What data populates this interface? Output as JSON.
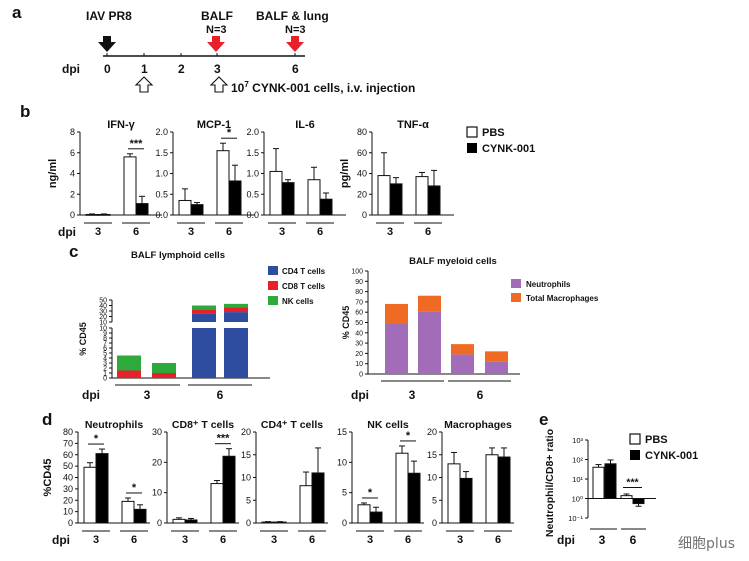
{
  "panels": {
    "a": "a",
    "b": "b",
    "c": "c",
    "d": "d",
    "e": "e"
  },
  "timeline": {
    "infection_label": "IAV PR8",
    "balf_label": "BALF",
    "balf_n": "N=3",
    "balf_lung_label": "BALF & lung",
    "balf_lung_n": "N=3",
    "axis_label": "dpi",
    "ticks": [
      "0",
      "1",
      "2",
      "3",
      "6"
    ],
    "injection_prefix": "10",
    "injection_exp": "7",
    "injection_text": " CYNK-001 cells, i.v. injection"
  },
  "legend": {
    "pbs": "PBS",
    "cynk": "CYNK-001"
  },
  "colors": {
    "cd4": "#2e4da0",
    "cd8": "#e8202a",
    "nk": "#2eaa3c",
    "neut": "#a36cb8",
    "mac": "#ef6a23",
    "pbs": "#ffffff",
    "cynk": "#000000"
  },
  "chart_data": [
    {
      "id": "b-ifng",
      "type": "bar",
      "title": "IFN-γ",
      "ylabel": "ng/ml",
      "xlabel": "dpi",
      "ylim": [
        0,
        8
      ],
      "yticks": [
        "0",
        "2",
        "4",
        "6",
        "8"
      ],
      "categories": [
        "3",
        "6"
      ],
      "series": [
        {
          "name": "PBS",
          "values": [
            0.05,
            5.6
          ],
          "errors": [
            0.05,
            0.3
          ]
        },
        {
          "name": "CYNK-001",
          "values": [
            0.05,
            1.1
          ],
          "errors": [
            0.05,
            0.7
          ]
        }
      ],
      "sig": [
        {
          "group": 1,
          "text": "***"
        }
      ]
    },
    {
      "id": "b-mcp1",
      "type": "bar",
      "title": "MCP-1",
      "ylabel": "",
      "xlabel": "",
      "ylim": [
        0,
        2.0
      ],
      "yticks": [
        "0.0",
        "0.5",
        "1.0",
        "1.5",
        "2.0"
      ],
      "categories": [
        "3",
        "6"
      ],
      "series": [
        {
          "name": "PBS",
          "values": [
            0.35,
            1.55
          ],
          "errors": [
            0.28,
            0.18
          ]
        },
        {
          "name": "CYNK-001",
          "values": [
            0.25,
            0.82
          ],
          "errors": [
            0.05,
            0.38
          ]
        }
      ],
      "sig": [
        {
          "group": 1,
          "text": "*"
        }
      ]
    },
    {
      "id": "b-il6",
      "type": "bar",
      "title": "IL-6",
      "ylabel": "",
      "xlabel": "",
      "ylim": [
        0,
        2.0
      ],
      "yticks": [
        "0.0",
        "0.5",
        "1.0",
        "1.5",
        "2.0"
      ],
      "categories": [
        "3",
        "6"
      ],
      "series": [
        {
          "name": "PBS",
          "values": [
            1.05,
            0.85
          ],
          "errors": [
            0.55,
            0.3
          ]
        },
        {
          "name": "CYNK-001",
          "values": [
            0.78,
            0.38
          ],
          "errors": [
            0.07,
            0.15
          ]
        }
      ],
      "sig": []
    },
    {
      "id": "b-tnfa",
      "type": "bar",
      "title": "TNF-α",
      "ylabel": "pg/ml",
      "xlabel": "",
      "ylim": [
        0,
        80
      ],
      "yticks": [
        "0",
        "20",
        "40",
        "60",
        "80"
      ],
      "categories": [
        "3",
        "6"
      ],
      "series": [
        {
          "name": "PBS",
          "values": [
            38,
            37
          ],
          "errors": [
            22,
            4
          ]
        },
        {
          "name": "CYNK-001",
          "values": [
            30,
            28
          ],
          "errors": [
            6,
            15
          ]
        }
      ],
      "sig": []
    },
    {
      "id": "c-lymphoid",
      "type": "bar",
      "stacked": true,
      "broken_axis": true,
      "title": "BALF lymphoid cells",
      "ylabel": "% CD45",
      "xlabel": "dpi",
      "categories": [
        "3",
        "6"
      ],
      "yticks_low": [
        "0",
        "1",
        "2",
        "3",
        "4",
        "5",
        "6",
        "7",
        "8",
        "9",
        "10"
      ],
      "yticks_high": [
        "10",
        "20",
        "30",
        "40",
        "50"
      ],
      "bars": [
        {
          "group": 0,
          "segments": [
            {
              "name": "CD4 T cells",
              "value": 0.0
            },
            {
              "name": "CD8 T cells",
              "value": 1.5
            },
            {
              "name": "NK cells",
              "value": 3.0
            }
          ]
        },
        {
          "group": 0,
          "segments": [
            {
              "name": "CD4 T cells",
              "value": 0.0
            },
            {
              "name": "CD8 T cells",
              "value": 1.0
            },
            {
              "name": "NK cells",
              "value": 2.0
            }
          ]
        },
        {
          "group": 1,
          "segments": [
            {
              "name": "CD4 T cells",
              "value": 26
            },
            {
              "name": "CD8 T cells",
              "value": 7
            },
            {
              "name": "NK cells",
              "value": 7
            }
          ]
        },
        {
          "group": 1,
          "segments": [
            {
              "name": "CD4 T cells",
              "value": 28
            },
            {
              "name": "CD8 T cells",
              "value": 9
            },
            {
              "name": "NK cells",
              "value": 6
            }
          ]
        }
      ],
      "legend": [
        "CD4 T cells",
        "CD8 T cells",
        "NK cells"
      ]
    },
    {
      "id": "c-myeloid",
      "type": "bar",
      "stacked": true,
      "title": "BALF myeloid cells",
      "ylabel": "% CD45",
      "xlabel": "dpi",
      "categories": [
        "3",
        "6"
      ],
      "ylim": [
        0,
        100
      ],
      "yticks": [
        "0",
        "10",
        "20",
        "30",
        "40",
        "50",
        "60",
        "70",
        "80",
        "90",
        "100"
      ],
      "bars": [
        {
          "group": 0,
          "segments": [
            {
              "name": "Neutrophils",
              "value": 49
            },
            {
              "name": "Total Macrophages",
              "value": 19
            }
          ]
        },
        {
          "group": 0,
          "segments": [
            {
              "name": "Neutrophils",
              "value": 61
            },
            {
              "name": "Total Macrophages",
              "value": 15
            }
          ]
        },
        {
          "group": 1,
          "segments": [
            {
              "name": "Neutrophils",
              "value": 19
            },
            {
              "name": "Total Macrophages",
              "value": 10
            }
          ]
        },
        {
          "group": 1,
          "segments": [
            {
              "name": "Neutrophils",
              "value": 12
            },
            {
              "name": "Total Macrophages",
              "value": 10
            }
          ]
        }
      ],
      "legend": [
        "Neutrophils",
        "Total Macrophages"
      ]
    },
    {
      "id": "d-neut",
      "type": "bar",
      "title": "Neutrophils",
      "ylabel": "%CD45",
      "xlabel": "dpi",
      "ylim": [
        0,
        80
      ],
      "yticks": [
        "0",
        "10",
        "20",
        "30",
        "40",
        "50",
        "60",
        "70",
        "80"
      ],
      "categories": [
        "3",
        "6"
      ],
      "series": [
        {
          "name": "PBS",
          "values": [
            49,
            19
          ],
          "errors": [
            4,
            3
          ]
        },
        {
          "name": "CYNK-001",
          "values": [
            61,
            12
          ],
          "errors": [
            4,
            4
          ]
        }
      ],
      "sig": [
        {
          "group": 0,
          "text": "*"
        },
        {
          "group": 1,
          "text": "*"
        }
      ]
    },
    {
      "id": "d-cd8",
      "type": "bar",
      "title": "CD8⁺ T cells",
      "ylabel": "",
      "xlabel": "",
      "ylim": [
        0,
        30
      ],
      "yticks": [
        "0",
        "10",
        "20",
        "30"
      ],
      "categories": [
        "3",
        "6"
      ],
      "series": [
        {
          "name": "PBS",
          "values": [
            1.2,
            13
          ],
          "errors": [
            0.5,
            1
          ]
        },
        {
          "name": "CYNK-001",
          "values": [
            1.0,
            22
          ],
          "errors": [
            0.5,
            2.5
          ]
        }
      ],
      "sig": [
        {
          "group": 1,
          "text": "***"
        }
      ]
    },
    {
      "id": "d-cd4",
      "type": "bar",
      "title": "CD4⁺ T cells",
      "ylabel": "",
      "xlabel": "",
      "ylim": [
        0,
        20
      ],
      "yticks": [
        "0",
        "5",
        "10",
        "15",
        "20"
      ],
      "categories": [
        "3",
        "6"
      ],
      "series": [
        {
          "name": "PBS",
          "values": [
            0.2,
            8.2
          ],
          "errors": [
            0.1,
            3.0
          ]
        },
        {
          "name": "CYNK-001",
          "values": [
            0.2,
            11
          ],
          "errors": [
            0.1,
            5.5
          ]
        }
      ],
      "sig": []
    },
    {
      "id": "d-nk",
      "type": "bar",
      "title": "NK cells",
      "ylabel": "",
      "xlabel": "",
      "ylim": [
        0,
        15
      ],
      "yticks": [
        "0",
        "5",
        "10",
        "15"
      ],
      "categories": [
        "3",
        "6"
      ],
      "series": [
        {
          "name": "PBS",
          "values": [
            3.0,
            11.5
          ],
          "errors": [
            0.3,
            1.2
          ]
        },
        {
          "name": "CYNK-001",
          "values": [
            1.8,
            8.2
          ],
          "errors": [
            0.8,
            2.0
          ]
        }
      ],
      "sig": [
        {
          "group": 0,
          "text": "*"
        },
        {
          "group": 1,
          "text": "*"
        }
      ]
    },
    {
      "id": "d-mac",
      "type": "bar",
      "title": "Macrophages",
      "ylabel": "",
      "xlabel": "",
      "ylim": [
        0,
        20
      ],
      "yticks": [
        "0",
        "5",
        "10",
        "15",
        "20"
      ],
      "categories": [
        "3",
        "6"
      ],
      "series": [
        {
          "name": "PBS",
          "values": [
            13,
            15
          ],
          "errors": [
            2.5,
            1.5
          ]
        },
        {
          "name": "CYNK-001",
          "values": [
            9.8,
            14.5
          ],
          "errors": [
            1.5,
            2.0
          ]
        }
      ],
      "sig": []
    },
    {
      "id": "e-ratio",
      "type": "bar",
      "title": "",
      "ylabel": "Neutrophil/CD8+ ratio",
      "xlabel": "dpi",
      "ylog": true,
      "yticks": [
        "10³",
        "10²",
        "10¹",
        "10⁰",
        "10⁻¹"
      ],
      "categories": [
        "3",
        "6"
      ],
      "series": [
        {
          "name": "PBS",
          "values": [
            40,
            1.4
          ],
          "errors": [
            15,
            0.3
          ]
        },
        {
          "name": "CYNK-001",
          "values": [
            60,
            0.55
          ],
          "errors": [
            35,
            0.15
          ]
        }
      ],
      "sig": [
        {
          "group": 1,
          "text": "***"
        }
      ]
    }
  ],
  "watermark": "细胞plus"
}
